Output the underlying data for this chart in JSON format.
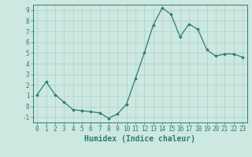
{
  "x": [
    0,
    1,
    2,
    3,
    4,
    5,
    6,
    7,
    8,
    9,
    10,
    11,
    12,
    13,
    14,
    15,
    16,
    17,
    18,
    19,
    20,
    21,
    22,
    23
  ],
  "y": [
    1.1,
    2.3,
    1.1,
    0.4,
    -0.3,
    -0.4,
    -0.5,
    -0.6,
    -1.1,
    -0.7,
    0.2,
    2.6,
    5.0,
    7.6,
    9.2,
    8.6,
    6.5,
    7.7,
    7.2,
    5.3,
    4.7,
    4.9,
    4.9,
    4.6
  ],
  "line_color": "#2e7d6e",
  "marker": "D",
  "marker_size": 1.8,
  "line_width": 0.9,
  "xlabel": "Humidex (Indice chaleur)",
  "xlim": [
    -0.5,
    23.5
  ],
  "ylim": [
    -1.5,
    9.5
  ],
  "yticks": [
    -1,
    0,
    1,
    2,
    3,
    4,
    5,
    6,
    7,
    8,
    9
  ],
  "xticks": [
    0,
    1,
    2,
    3,
    4,
    5,
    6,
    7,
    8,
    9,
    10,
    11,
    12,
    13,
    14,
    15,
    16,
    17,
    18,
    19,
    20,
    21,
    22,
    23
  ],
  "bg_color": "#cce8e0",
  "grid_color": "#b0cfc8",
  "tick_color": "#2e7d6e",
  "label_color": "#2e7d6e",
  "xlabel_fontsize": 7,
  "tick_fontsize": 5.5
}
